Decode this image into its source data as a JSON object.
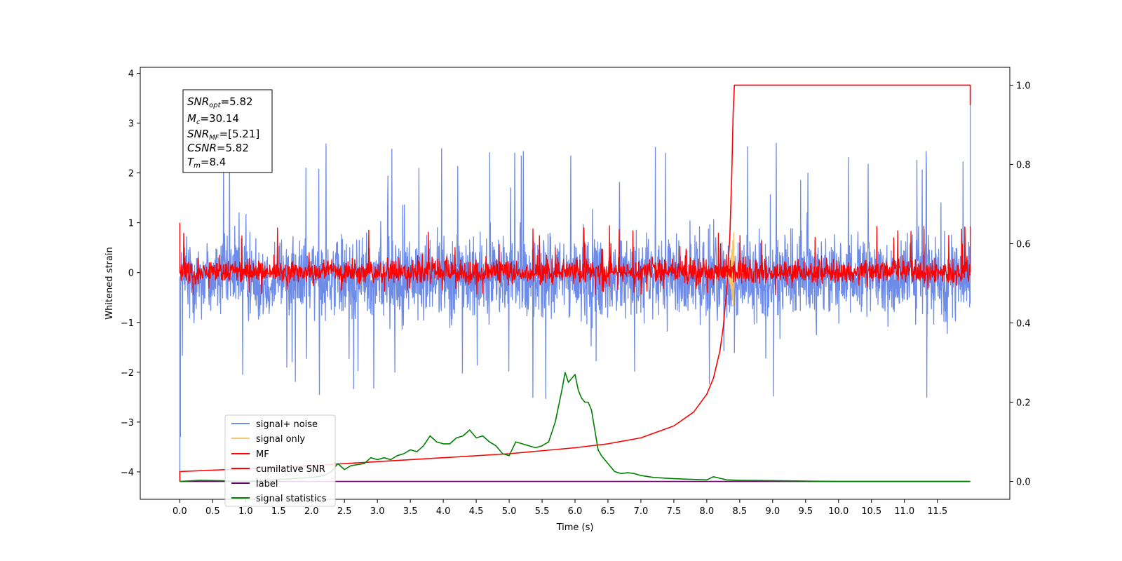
{
  "chart_data": {
    "type": "line",
    "title": "",
    "xlabel": "Time (s)",
    "ylabel": "Whitened strain",
    "y2label": "",
    "xlim": [
      -0.6,
      12.6
    ],
    "ylim": [
      -4.55,
      4.12
    ],
    "y2lim": [
      -0.045,
      1.045
    ],
    "xticks": [
      0.0,
      0.5,
      1.0,
      1.5,
      2.0,
      2.5,
      3.0,
      3.5,
      4.0,
      4.5,
      5.0,
      5.5,
      6.0,
      6.5,
      7.0,
      7.5,
      8.0,
      8.5,
      9.0,
      9.5,
      10.0,
      10.5,
      11.0,
      11.5
    ],
    "xtick_labels": [
      "0.0",
      "0.5",
      "1.0",
      "1.5",
      "2.0",
      "2.5",
      "3.0",
      "3.5",
      "4.0",
      "4.5",
      "5.0",
      "5.5",
      "6.0",
      "6.5",
      "7.0",
      "7.5",
      "8.0",
      "8.5",
      "9.0",
      "9.5",
      "10.0",
      "10.5",
      "11.0",
      "11.5"
    ],
    "yticks": [
      -4,
      -3,
      -2,
      -1,
      0,
      1,
      2,
      3,
      4
    ],
    "ytick_labels": [
      "−4",
      "−3",
      "−2",
      "−1",
      "0",
      "1",
      "2",
      "3",
      "4"
    ],
    "y2ticks": [
      0.0,
      0.2,
      0.4,
      0.6,
      0.8,
      1.0
    ],
    "y2tick_labels": [
      "0.0",
      "0.2",
      "0.4",
      "0.6",
      "0.8",
      "1.0"
    ],
    "grid": false,
    "legend_position": "lower-left",
    "annotation": {
      "position": "top-left",
      "lines": [
        {
          "base": "SNR",
          "sub": "opt",
          "value": "=5.82"
        },
        {
          "base": "M",
          "sub": "c",
          "value": "=30.14"
        },
        {
          "base": "SNR",
          "sub": "MF",
          "value": "=[5.21]"
        },
        {
          "base": "CSNR",
          "sub": "",
          "value": "=5.82"
        },
        {
          "base": "T",
          "sub": "m",
          "value": "=8.4"
        }
      ]
    },
    "series": [
      {
        "name": "signal+ noise",
        "axis": "left",
        "color": "#6d8be8",
        "kind": "noise",
        "x_range": [
          0.0,
          12.0
        ],
        "center": -0.1,
        "typical_band": [
          -1.3,
          1.2
        ],
        "extreme_band": [
          -2.55,
          2.6
        ],
        "spikes": [
          {
            "x": 0.0,
            "y": -4.0
          },
          {
            "x": 0.01,
            "y": -3.3
          },
          {
            "x": 12.0,
            "y": 3.7
          },
          {
            "x": 11.99,
            "y": -0.7
          }
        ]
      },
      {
        "name": "signal only",
        "axis": "left",
        "color": "#f5c66b",
        "kind": "chirp",
        "x_range": [
          8.25,
          8.41
        ],
        "amplitude_max": 0.85
      },
      {
        "name": "MF",
        "axis": "left",
        "color": "#ff0000",
        "kind": "noise",
        "x_range": [
          0.0,
          12.0
        ],
        "center": 0.0,
        "typical_band": [
          -0.3,
          0.4
        ],
        "extreme_band": [
          -0.45,
          0.95
        ],
        "spikes": [
          {
            "x": 0.0,
            "y": 1.0
          },
          {
            "x": 12.0,
            "y": 0.93
          }
        ]
      },
      {
        "name": "cumilative SNR",
        "axis": "right",
        "color": "#ff0000",
        "kind": "curve",
        "x": [
          0.0,
          0.0,
          1.0,
          2.0,
          3.0,
          4.0,
          5.0,
          6.0,
          6.5,
          7.0,
          7.5,
          7.8,
          8.0,
          8.1,
          8.2,
          8.25,
          8.3,
          8.35,
          8.38,
          8.4,
          8.42,
          12.0,
          12.0
        ],
        "values": [
          0.0,
          0.025,
          0.032,
          0.04,
          0.05,
          0.06,
          0.07,
          0.085,
          0.095,
          0.11,
          0.14,
          0.175,
          0.22,
          0.26,
          0.33,
          0.39,
          0.48,
          0.62,
          0.78,
          0.93,
          1.0,
          1.0,
          0.95
        ]
      },
      {
        "name": "label",
        "axis": "right",
        "color": "#6a006a",
        "kind": "curve",
        "x": [
          0.0,
          12.0
        ],
        "values": [
          0.0,
          0.0
        ]
      },
      {
        "name": "signal statistics",
        "axis": "right",
        "color": "#008000",
        "kind": "curve",
        "x": [
          0.0,
          0.3,
          0.6,
          1.0,
          1.5,
          2.0,
          2.2,
          2.3,
          2.4,
          2.5,
          2.6,
          2.8,
          2.9,
          3.0,
          3.1,
          3.2,
          3.3,
          3.4,
          3.5,
          3.6,
          3.7,
          3.8,
          3.9,
          4.0,
          4.1,
          4.2,
          4.3,
          4.4,
          4.5,
          4.6,
          4.7,
          4.8,
          4.9,
          5.0,
          5.1,
          5.2,
          5.3,
          5.4,
          5.5,
          5.6,
          5.7,
          5.75,
          5.8,
          5.85,
          5.9,
          5.95,
          6.0,
          6.05,
          6.1,
          6.15,
          6.2,
          6.25,
          6.3,
          6.35,
          6.4,
          6.5,
          6.6,
          6.7,
          6.8,
          6.9,
          7.0,
          7.2,
          7.5,
          7.8,
          8.0,
          8.1,
          8.2,
          8.3,
          8.5,
          9.0,
          9.5,
          10.0,
          11.0,
          12.0
        ],
        "values": [
          0.0,
          0.003,
          0.002,
          0.0,
          0.005,
          0.01,
          0.015,
          0.025,
          0.045,
          0.03,
          0.04,
          0.045,
          0.06,
          0.055,
          0.06,
          0.055,
          0.065,
          0.07,
          0.08,
          0.075,
          0.09,
          0.115,
          0.1,
          0.095,
          0.095,
          0.11,
          0.115,
          0.13,
          0.11,
          0.115,
          0.1,
          0.09,
          0.07,
          0.065,
          0.1,
          0.095,
          0.09,
          0.085,
          0.09,
          0.1,
          0.15,
          0.19,
          0.23,
          0.275,
          0.25,
          0.26,
          0.27,
          0.23,
          0.21,
          0.2,
          0.2,
          0.18,
          0.13,
          0.08,
          0.065,
          0.045,
          0.025,
          0.02,
          0.022,
          0.02,
          0.015,
          0.01,
          0.007,
          0.005,
          0.004,
          0.012,
          0.008,
          0.004,
          0.003,
          0.002,
          0.001,
          0.0,
          0.0,
          0.0
        ]
      }
    ]
  }
}
